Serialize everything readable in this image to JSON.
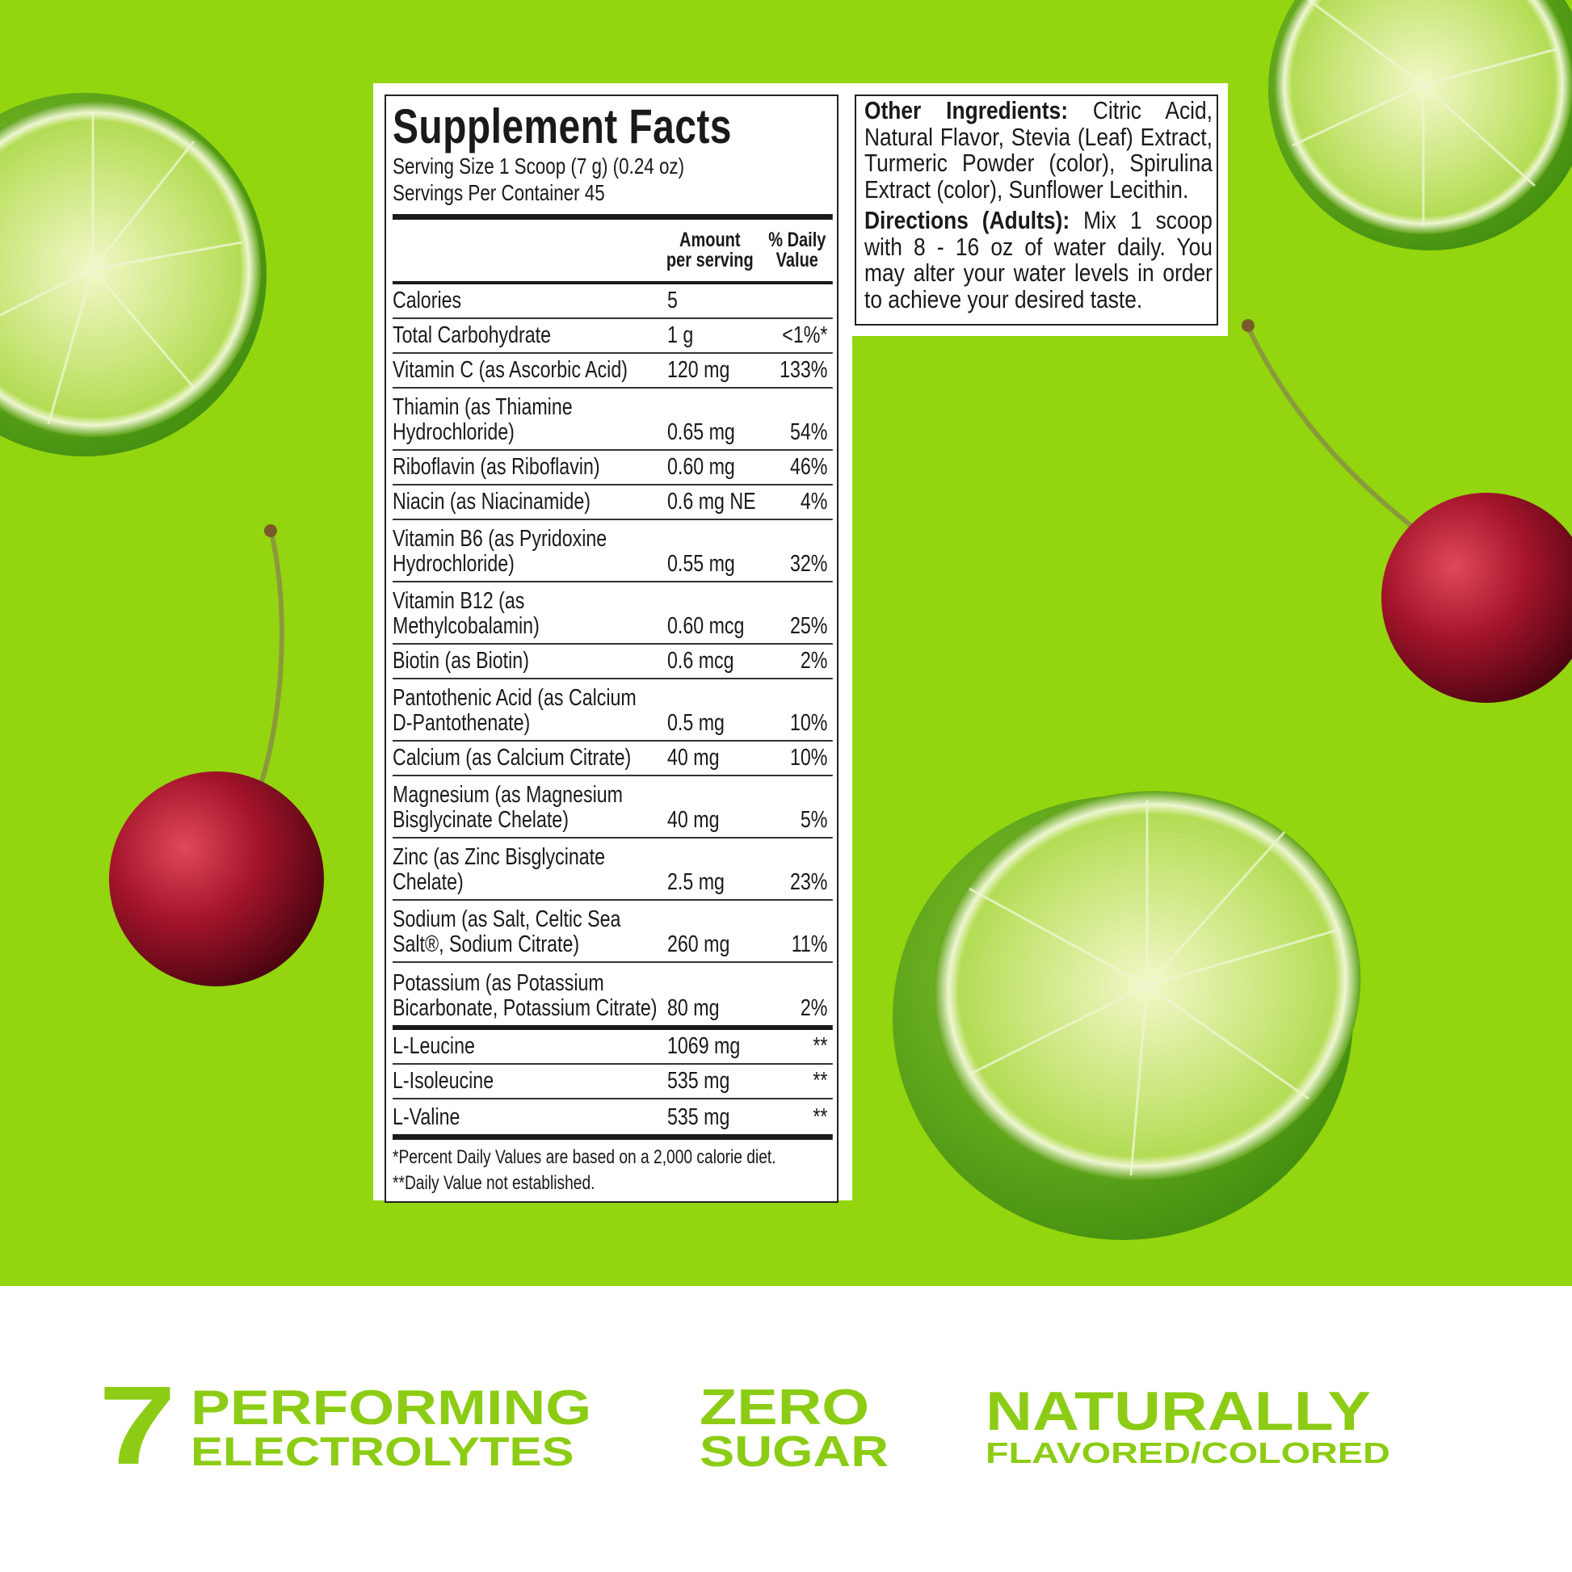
{
  "colors": {
    "background_green": "#93d50f",
    "claim_green": "#8ccc14",
    "label_text": "#1a1a1a"
  },
  "supplement_facts": {
    "title": "Supplement Facts",
    "serving_size": "Serving Size 1 Scoop (7 g) (0.24 oz)",
    "servings_per_container": "Servings Per Container 45",
    "col_amount_line1": "Amount",
    "col_amount_line2": "per serving",
    "col_dv_line1": "% Daily",
    "col_dv_line2": "Value",
    "rows": [
      {
        "name": "Calories",
        "amount": "5",
        "dv": ""
      },
      {
        "name": "Total Carbohydrate",
        "amount": "1 g",
        "dv": "<1%*"
      },
      {
        "name": "Vitamin C (as Ascorbic Acid)",
        "amount": "120 mg",
        "dv": "133%"
      },
      {
        "name": "Thiamin (as Thiamine Hydrochloride)",
        "amount": "0.65 mg",
        "dv": "54%"
      },
      {
        "name": "Riboflavin (as Riboflavin)",
        "amount": "0.60 mg",
        "dv": "46%"
      },
      {
        "name": "Niacin (as Niacinamide)",
        "amount": "0.6 mg NE",
        "dv": "4%"
      },
      {
        "name": "Vitamin B6 (as Pyridoxine Hydrochloride)",
        "amount": "0.55 mg",
        "dv": "32%"
      },
      {
        "name": "Vitamin B12 (as Methylcobalamin)",
        "amount": "0.60 mcg",
        "dv": "25%"
      },
      {
        "name": "Biotin (as Biotin)",
        "amount": "0.6 mcg",
        "dv": "2%"
      },
      {
        "name": "Pantothenic Acid (as Calcium D-Pantothenate)",
        "amount": "0.5 mg",
        "dv": "10%"
      },
      {
        "name": "Calcium (as Calcium Citrate)",
        "amount": "40 mg",
        "dv": "10%"
      },
      {
        "name": "Magnesium (as Magnesium Bisglycinate Chelate)",
        "amount": "40 mg",
        "dv": "5%"
      },
      {
        "name": "Zinc (as Zinc Bisglycinate Chelate)",
        "amount": "2.5 mg",
        "dv": "23%"
      },
      {
        "name": "Sodium (as Salt, Celtic Sea Salt®, Sodium Citrate)",
        "amount": "260 mg",
        "dv": "11%"
      },
      {
        "name": "Potassium (as Potassium Bicarbonate, Potassium Citrate)",
        "amount": "80 mg",
        "dv": "2%"
      }
    ],
    "amino_rows": [
      {
        "name": "L-Leucine",
        "amount": "1069 mg",
        "dv": "**"
      },
      {
        "name": "L-Isoleucine",
        "amount": "535 mg",
        "dv": "**"
      },
      {
        "name": "L-Valine",
        "amount": "535 mg",
        "dv": "**"
      }
    ],
    "footnote1": "*Percent Daily Values are based on a 2,000 calorie diet.",
    "footnote2": "**Daily Value not established."
  },
  "other_info": {
    "ingredients_label": "Other Ingredients:",
    "ingredients_text": "Citric Acid, Natural Flavor, Stevia (Leaf) Extract, Turmeric Powder (color), Spirulina Extract (color), Sunflower Lecithin.",
    "directions_label": "Directions (Adults):",
    "directions_text": "Mix 1 scoop with 8 - 16 oz of water daily. You may alter your water levels in order to achieve your desired taste."
  },
  "claims": [
    {
      "number": "7",
      "line1": "PERFORMING",
      "line2": "ELECTROLYTES"
    },
    {
      "line1": "ZERO",
      "line2": "SUGAR"
    },
    {
      "line1": "NATURALLY",
      "line2": "FLAVORED/COLORED"
    }
  ]
}
